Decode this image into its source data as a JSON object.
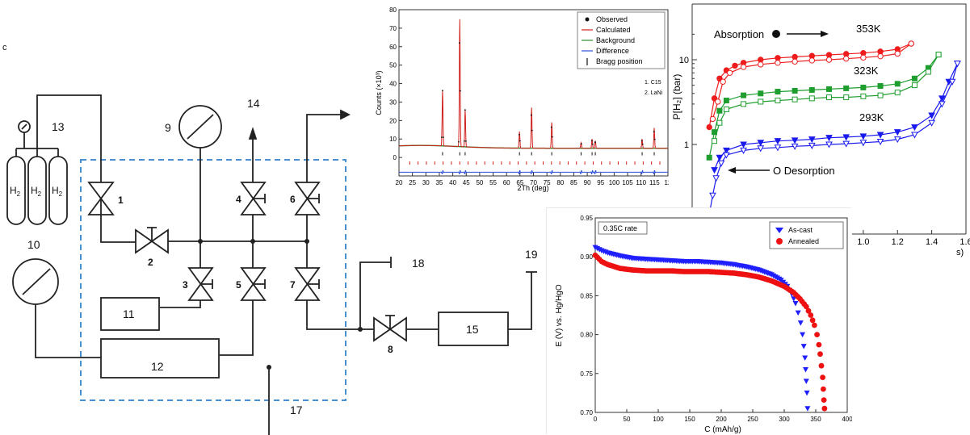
{
  "schematic": {
    "numbers": [
      "1",
      "2",
      "3",
      "4",
      "5",
      "6",
      "7",
      "8",
      "9",
      "10",
      "11",
      "12",
      "13",
      "14",
      "15",
      "17",
      "18",
      "19"
    ],
    "gas_label": "H",
    "gas_sub": "2",
    "corner_mark": "c"
  },
  "chart_data": [
    {
      "type": "line",
      "ylabel": "Counts (×10³)",
      "xlabel": "2Th (deg)",
      "x_ticks": [
        "20",
        "25",
        "30",
        "35",
        "40",
        "45",
        "50",
        "55",
        "60",
        "65",
        "70",
        "75",
        "80",
        "85",
        "90",
        "95",
        "100",
        "105",
        "110",
        "115",
        "12"
      ],
      "y_ticks": [
        "0",
        "10",
        "20",
        "30",
        "40",
        "50",
        "60",
        "70",
        "80"
      ],
      "xlim": [
        20,
        120
      ],
      "ylim": [
        -10,
        80
      ],
      "legend": [
        "Observed",
        "Calculated",
        "Background",
        "Difference",
        "Bragg position"
      ],
      "legend_position": "top-right",
      "phase_labels": [
        "1. C15",
        "2. LaNi"
      ],
      "peaks": [
        {
          "x": 36.2,
          "y": 35
        },
        {
          "x": 42.6,
          "y": 74
        },
        {
          "x": 44.6,
          "y": 25
        },
        {
          "x": 64.8,
          "y": 14
        },
        {
          "x": 69.3,
          "y": 27
        },
        {
          "x": 76.8,
          "y": 19
        },
        {
          "x": 87.7,
          "y": 8
        },
        {
          "x": 91.8,
          "y": 10
        },
        {
          "x": 93.0,
          "y": 9
        },
        {
          "x": 110.4,
          "y": 10
        },
        {
          "x": 114.9,
          "y": 16
        }
      ],
      "background_level": 5,
      "bragg_rows": [
        2,
        -3
      ]
    },
    {
      "type": "line",
      "scale": "log",
      "ylabel": "P[H₂] (bar)",
      "y_ticks": [
        "1",
        "10"
      ],
      "x_ticks": [
        "1.0",
        "1.2",
        "1.4",
        "1.6"
      ],
      "xlabel_fragment": "s)",
      "annotations": [
        "Absorption",
        "O Desorption"
      ],
      "series": [
        {
          "name": "353K",
          "color": "#ee1c1c",
          "absorption": [
            [
              0.1,
              1.6
            ],
            [
              0.13,
              3.5
            ],
            [
              0.16,
              6.0
            ],
            [
              0.2,
              7.5
            ],
            [
              0.25,
              8.5
            ],
            [
              0.3,
              9.2
            ],
            [
              0.4,
              10.0
            ],
            [
              0.5,
              10.5
            ],
            [
              0.6,
              10.8
            ],
            [
              0.7,
              11.1
            ],
            [
              0.8,
              11.4
            ],
            [
              0.9,
              11.7
            ],
            [
              1.0,
              12.0
            ],
            [
              1.1,
              12.5
            ],
            [
              1.2,
              13.3
            ],
            [
              1.28,
              15.5
            ]
          ],
          "desorption": [
            [
              0.12,
              2.0
            ],
            [
              0.15,
              3.2
            ],
            [
              0.18,
              5.5
            ],
            [
              0.22,
              7.0
            ],
            [
              0.3,
              8.2
            ],
            [
              0.4,
              8.8
            ],
            [
              0.5,
              9.2
            ],
            [
              0.6,
              9.5
            ],
            [
              0.7,
              9.8
            ],
            [
              0.8,
              10.0
            ],
            [
              0.9,
              10.3
            ],
            [
              1.0,
              10.6
            ],
            [
              1.1,
              11.0
            ],
            [
              1.2,
              11.8
            ],
            [
              1.28,
              15.5
            ]
          ]
        },
        {
          "name": "323K",
          "color": "#1e9e2e",
          "absorption": [
            [
              0.1,
              0.7
            ],
            [
              0.13,
              1.4
            ],
            [
              0.16,
              2.5
            ],
            [
              0.2,
              3.3
            ],
            [
              0.3,
              3.8
            ],
            [
              0.4,
              4.0
            ],
            [
              0.5,
              4.2
            ],
            [
              0.6,
              4.3
            ],
            [
              0.7,
              4.4
            ],
            [
              0.8,
              4.5
            ],
            [
              0.9,
              4.6
            ],
            [
              1.0,
              4.7
            ],
            [
              1.1,
              4.9
            ],
            [
              1.2,
              5.2
            ],
            [
              1.3,
              6.0
            ],
            [
              1.38,
              8.0
            ],
            [
              1.44,
              11.5
            ]
          ],
          "desorption": [
            [
              0.13,
              1.1
            ],
            [
              0.16,
              1.8
            ],
            [
              0.2,
              2.6
            ],
            [
              0.3,
              3.0
            ],
            [
              0.4,
              3.2
            ],
            [
              0.5,
              3.3
            ],
            [
              0.6,
              3.4
            ],
            [
              0.7,
              3.5
            ],
            [
              0.8,
              3.6
            ],
            [
              0.9,
              3.6
            ],
            [
              1.0,
              3.7
            ],
            [
              1.1,
              3.8
            ],
            [
              1.2,
              4.1
            ],
            [
              1.3,
              5.0
            ],
            [
              1.38,
              7.2
            ],
            [
              1.44,
              11.5
            ]
          ]
        },
        {
          "name": "293K",
          "color": "#1a1aee",
          "absorption": [
            [
              0.13,
              0.5
            ],
            [
              0.16,
              0.7
            ],
            [
              0.2,
              0.85
            ],
            [
              0.3,
              1.0
            ],
            [
              0.4,
              1.05
            ],
            [
              0.5,
              1.1
            ],
            [
              0.6,
              1.12
            ],
            [
              0.7,
              1.15
            ],
            [
              0.8,
              1.2
            ],
            [
              0.9,
              1.22
            ],
            [
              1.0,
              1.25
            ],
            [
              1.1,
              1.3
            ],
            [
              1.2,
              1.4
            ],
            [
              1.3,
              1.6
            ],
            [
              1.4,
              2.2
            ],
            [
              1.46,
              3.5
            ],
            [
              1.5,
              5.5
            ],
            [
              1.55,
              9.0
            ]
          ],
          "desorption": [
            [
              0.1,
              0.15
            ],
            [
              0.12,
              0.25
            ],
            [
              0.14,
              0.4
            ],
            [
              0.17,
              0.6
            ],
            [
              0.2,
              0.75
            ],
            [
              0.3,
              0.85
            ],
            [
              0.4,
              0.9
            ],
            [
              0.5,
              0.92
            ],
            [
              0.6,
              0.95
            ],
            [
              0.7,
              0.97
            ],
            [
              0.8,
              1.0
            ],
            [
              0.9,
              1.02
            ],
            [
              1.0,
              1.05
            ],
            [
              1.1,
              1.08
            ],
            [
              1.2,
              1.15
            ],
            [
              1.3,
              1.3
            ],
            [
              1.4,
              1.8
            ],
            [
              1.46,
              3.0
            ],
            [
              1.52,
              5.5
            ],
            [
              1.55,
              9.0
            ]
          ]
        }
      ]
    },
    {
      "type": "scatter",
      "ylabel": "E (V) vs. Hg/HgO",
      "xlabel": "C (mAh/g)",
      "xlim": [
        0,
        400
      ],
      "ylim": [
        0.7,
        0.95
      ],
      "x_ticks": [
        "0",
        "50",
        "100",
        "150",
        "200",
        "250",
        "300",
        "350",
        "400"
      ],
      "y_ticks": [
        "0.70",
        "0.75",
        "0.80",
        "0.85",
        "0.90",
        "0.95"
      ],
      "rate_label": "0.35C rate",
      "legend_position": "top-right",
      "series": [
        {
          "name": "As-cast",
          "color": "#1f1fff",
          "marker": "triangle-down",
          "points": [
            [
              0,
              0.912
            ],
            [
              10,
              0.908
            ],
            [
              20,
              0.905
            ],
            [
              40,
              0.901
            ],
            [
              60,
              0.898
            ],
            [
              80,
              0.897
            ],
            [
              100,
              0.896
            ],
            [
              120,
              0.895
            ],
            [
              140,
              0.894
            ],
            [
              160,
              0.894
            ],
            [
              180,
              0.893
            ],
            [
              200,
              0.892
            ],
            [
              220,
              0.89
            ],
            [
              240,
              0.887
            ],
            [
              260,
              0.883
            ],
            [
              280,
              0.877
            ],
            [
              295,
              0.87
            ],
            [
              305,
              0.862
            ],
            [
              312,
              0.852
            ],
            [
              318,
              0.84
            ],
            [
              322,
              0.828
            ],
            [
              326,
              0.815
            ],
            [
              329,
              0.8
            ],
            [
              331,
              0.785
            ],
            [
              333,
              0.77
            ],
            [
              334,
              0.755
            ],
            [
              335,
              0.74
            ],
            [
              336,
              0.725
            ],
            [
              337,
              0.705
            ]
          ]
        },
        {
          "name": "Annealed",
          "color": "#ee1111",
          "marker": "circle",
          "points": [
            [
              0,
              0.902
            ],
            [
              10,
              0.894
            ],
            [
              20,
              0.89
            ],
            [
              40,
              0.885
            ],
            [
              60,
              0.883
            ],
            [
              80,
              0.882
            ],
            [
              100,
              0.882
            ],
            [
              120,
              0.882
            ],
            [
              140,
              0.881
            ],
            [
              160,
              0.881
            ],
            [
              180,
              0.881
            ],
            [
              200,
              0.88
            ],
            [
              220,
              0.879
            ],
            [
              240,
              0.877
            ],
            [
              260,
              0.874
            ],
            [
              280,
              0.869
            ],
            [
              300,
              0.862
            ],
            [
              315,
              0.854
            ],
            [
              325,
              0.846
            ],
            [
              335,
              0.836
            ],
            [
              342,
              0.825
            ],
            [
              348,
              0.812
            ],
            [
              352,
              0.8
            ],
            [
              355,
              0.787
            ],
            [
              357,
              0.775
            ],
            [
              359,
              0.76
            ],
            [
              361,
              0.745
            ],
            [
              362,
              0.73
            ],
            [
              363,
              0.716
            ],
            [
              364,
              0.705
            ]
          ]
        }
      ]
    }
  ]
}
